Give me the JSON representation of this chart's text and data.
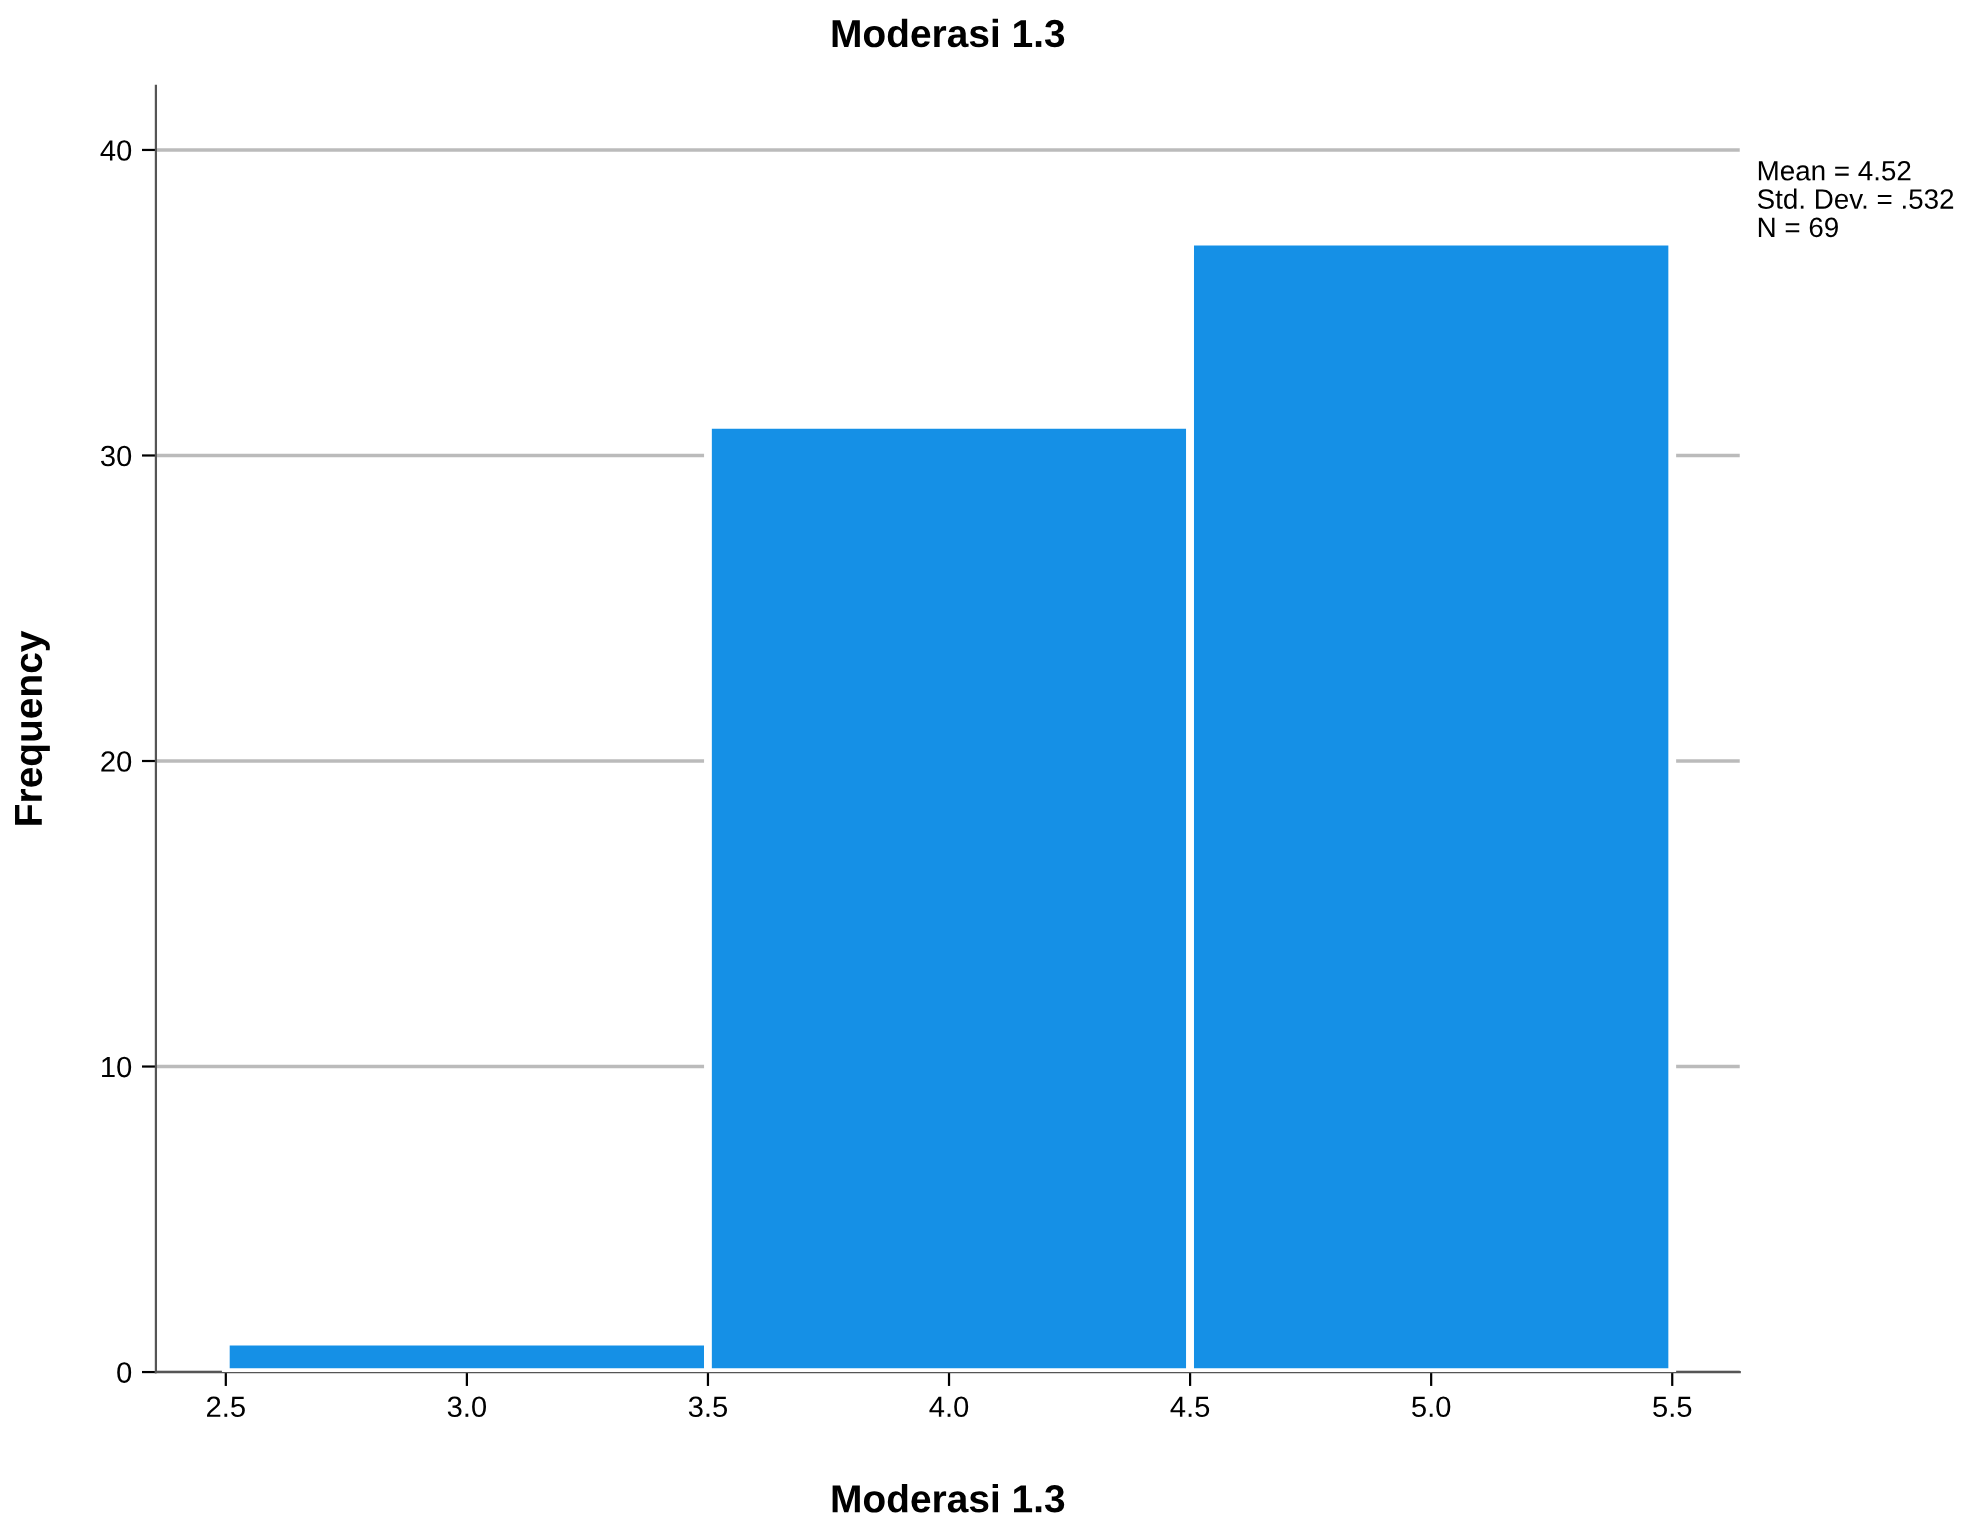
{
  "chart_data": {
    "type": "histogram",
    "title": "Moderasi 1.3",
    "xlabel": "Moderasi 1.3",
    "ylabel": "Frequency",
    "bins": [
      2.5,
      3.5,
      4.5,
      5.5
    ],
    "values": [
      1,
      31,
      37
    ],
    "color": "#1590e6",
    "xlim": [
      2.355,
      5.64
    ],
    "xticks": [
      2.5,
      {
        "value": 3,
        "label": "3.0"
      },
      3.5,
      {
        "value": 4,
        "label": "4.0"
      },
      4.5,
      {
        "value": 5,
        "label": "5.0"
      },
      5.5
    ],
    "ylim": [
      0,
      42.1
    ],
    "yticks": [
      0,
      10,
      20,
      30,
      40
    ],
    "grid": "y",
    "legend": false,
    "annotations": [
      "Mean = 4.52",
      "Std. Dev. = .532",
      "N = 69"
    ]
  }
}
